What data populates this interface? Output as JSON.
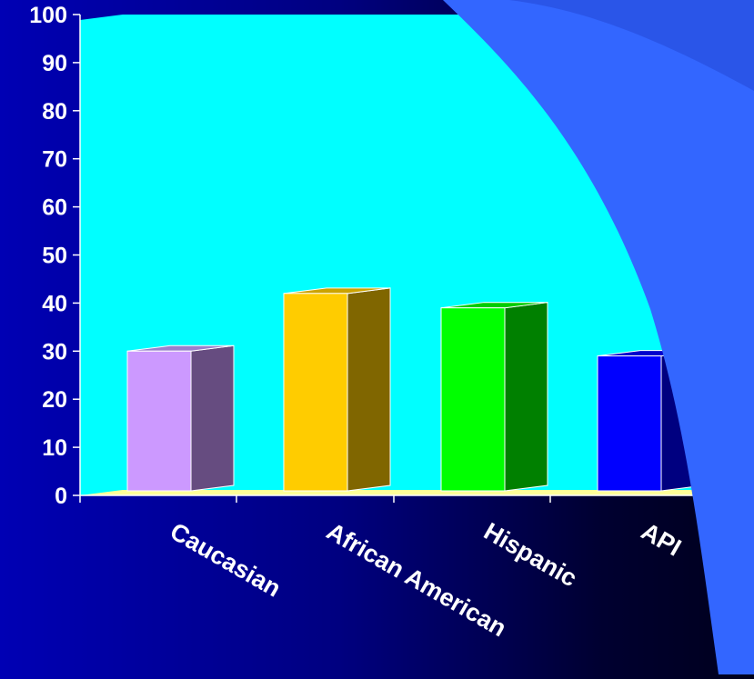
{
  "chart_data": {
    "type": "bar",
    "categories": [
      "Caucasian",
      "African American",
      "Hispanic",
      "API"
    ],
    "values": [
      30,
      42,
      39,
      29
    ],
    "ylim": [
      0,
      100
    ],
    "yticks": [
      0,
      10,
      20,
      30,
      40,
      50,
      60,
      70,
      80,
      90,
      100
    ],
    "grid": false,
    "legend": "none",
    "three_d": true,
    "bar_colors": [
      {
        "front": "#cc99ff",
        "side": "#664c80",
        "top": "#9980cc"
      },
      {
        "front": "#ffcc00",
        "side": "#806600",
        "top": "#cca300"
      },
      {
        "front": "#00ff00",
        "side": "#008000",
        "top": "#00cc00"
      },
      {
        "front": "#0000ff",
        "side": "#000080",
        "top": "#0000cc"
      }
    ],
    "colors": {
      "plot_wall": "#00ffff",
      "floor": "#ffff99",
      "page_curl": "#3366ff",
      "text": "#ffffff"
    }
  }
}
